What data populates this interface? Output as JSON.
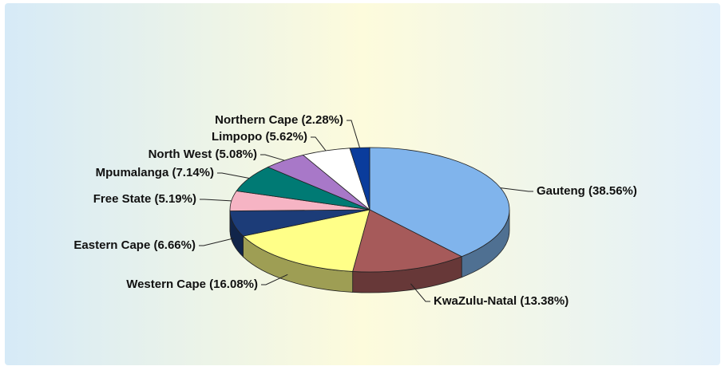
{
  "chart_data": {
    "type": "pie",
    "values": [
      38.56,
      13.38,
      16.08,
      6.66,
      5.19,
      7.14,
      5.08,
      5.62,
      2.28
    ],
    "value_labels": [
      "Gauteng (38.56%)",
      "KwaZulu-Natal (13.38%)",
      "Western Cape (16.08%)",
      "Eastern Cape (6.66%)",
      "Free State (5.19%)",
      "Mpumalanga (7.14%)",
      "North West (5.08%)",
      "Limpopo (5.62%)",
      "Northern Cape (2.28%)"
    ],
    "colors": [
      "#80b4ec",
      "#a65a5a",
      "#ffff88",
      "#1c3c78",
      "#f6b4c4",
      "#007a74",
      "#a878c8",
      "#ffffff",
      "#0a3c9c"
    ]
  }
}
